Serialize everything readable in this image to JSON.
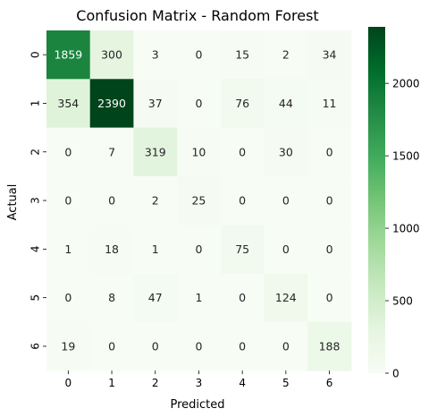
{
  "chart_data": {
    "type": "heatmap",
    "title": "Confusion Matrix - Random Forest",
    "xlabel": "Predicted",
    "ylabel": "Actual",
    "x_categories": [
      "0",
      "1",
      "2",
      "3",
      "4",
      "5",
      "6"
    ],
    "y_categories": [
      "0",
      "1",
      "2",
      "3",
      "4",
      "5",
      "6"
    ],
    "values": [
      [
        1859,
        300,
        3,
        0,
        15,
        2,
        34
      ],
      [
        354,
        2390,
        37,
        0,
        76,
        44,
        11
      ],
      [
        0,
        7,
        319,
        10,
        0,
        30,
        0
      ],
      [
        0,
        0,
        2,
        25,
        0,
        0,
        0
      ],
      [
        1,
        18,
        1,
        0,
        75,
        0,
        0
      ],
      [
        0,
        8,
        47,
        1,
        0,
        124,
        0
      ],
      [
        19,
        0,
        0,
        0,
        0,
        0,
        188
      ]
    ],
    "colorbar": {
      "min": 0,
      "max": 2390,
      "ticks": [
        0,
        500,
        1000,
        1500,
        2000
      ],
      "colormap": "Greens",
      "colors": [
        "#f7fcf5",
        "#e5f5e0",
        "#c7e9c0",
        "#a1d99b",
        "#74c476",
        "#41ab5d",
        "#238b45",
        "#006d2c",
        "#00441b"
      ]
    }
  }
}
